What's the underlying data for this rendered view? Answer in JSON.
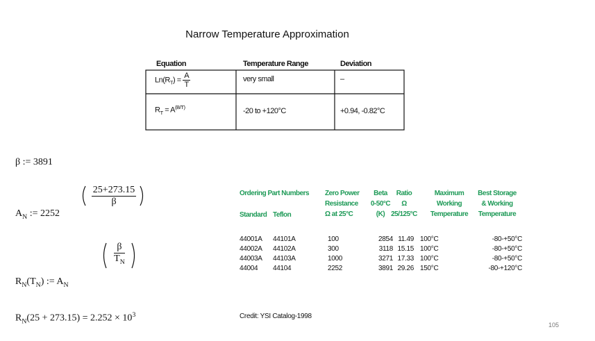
{
  "title": "Narrow Temperature Approximation",
  "approx_table": {
    "headers": [
      "Equation",
      "Temperature Range",
      "Deviation"
    ],
    "rows": [
      {
        "equation": {
          "base": "Ln(R",
          "sub": "T",
          "rest": ") = ",
          "numerator": "A",
          "denominator": "T"
        },
        "range": "very small",
        "deviation": "–"
      },
      {
        "equation": {
          "base": "R",
          "sub": "T",
          "rest": " = A",
          "sup": "(B/T)"
        },
        "range": "-20 to +120°C",
        "deviation": "+0.94, -0.82°C"
      }
    ]
  },
  "math": {
    "beta": "β := 3891",
    "a_n": {
      "lhs": "A",
      "lhs_sub": "N",
      "assign": " := 2252",
      "exp_numerator": "25+273.15",
      "exp_denominator": "β"
    },
    "r_n": {
      "lhs": "R",
      "lhs_sub": "N",
      "arg_open": "(T",
      "arg_sub": "N",
      "assign": ") := A",
      "assign_sub": "N",
      "exp_numerator": "β",
      "exp_denominator": "T",
      "exp_denominator_sub": "N"
    },
    "result": {
      "lhs": "R",
      "lhs_sub": "N",
      "expr": "(25 + 273.15) = 2.252 × 10",
      "sup": "3"
    }
  },
  "parts_table": {
    "group_header": "Ordering Part Numbers",
    "sub_headers": [
      "Standard",
      "Teflon"
    ],
    "column_headers": [
      [
        "Zero Power",
        "Resistance",
        "Ω at 25°C"
      ],
      [
        "Beta",
        "0-50°C",
        "(K)"
      ],
      [
        "Ratio",
        "Ω",
        "25/125°C"
      ],
      [
        "Maximum",
        "Working",
        "Temperature"
      ],
      [
        "Best Storage",
        "& Working",
        "Temperature"
      ]
    ],
    "rows": [
      [
        "44001A",
        "44101A",
        100,
        2854,
        11.49,
        "100°C",
        "-80-+50°C"
      ],
      [
        "44002A",
        "44102A",
        300,
        3118,
        15.15,
        "100°C",
        "-80-+50°C"
      ],
      [
        "44003A",
        "44103A",
        1000,
        3271,
        17.33,
        "100°C",
        "-80-+50°C"
      ],
      [
        "44004",
        "44104",
        2252,
        3891,
        29.26,
        "150°C",
        "-80-+120°C"
      ]
    ]
  },
  "credit": "Credit:  YSI Catalog-1998",
  "page_number": "105"
}
